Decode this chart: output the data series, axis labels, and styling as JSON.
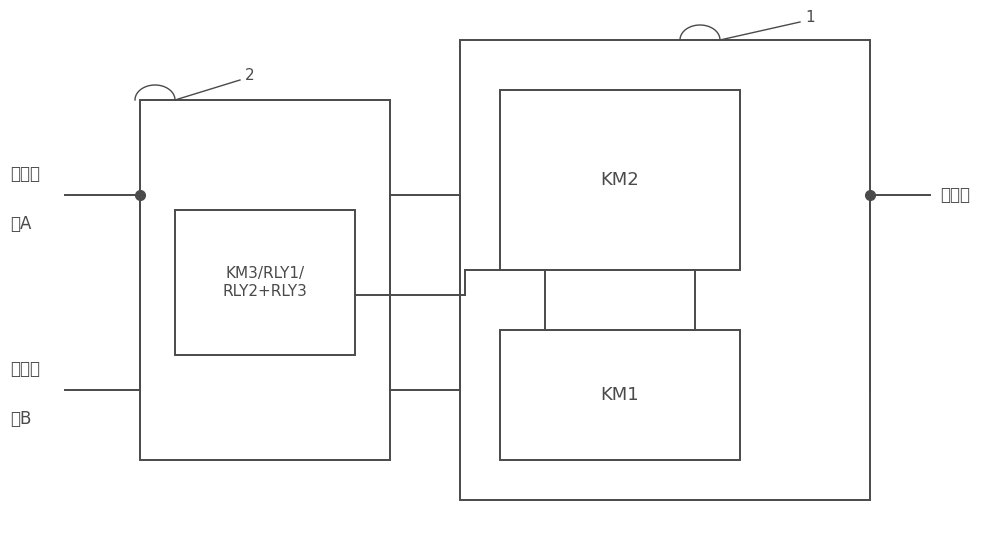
{
  "background_color": "#ffffff",
  "line_color": "#4a4a4a",
  "line_width": 1.4,
  "fig_width": 10.0,
  "fig_height": 5.59,
  "dpi": 100,
  "labels": {
    "source_a_line1": "交流电",
    "source_a_line2": "源A",
    "source_b_line1": "交流电",
    "source_b_line2": "源B",
    "load": "至负载",
    "km1": "KM1",
    "km2": "KM2",
    "km3_rly": "KM3/RLY1/\nRLY2+RLY3",
    "label1": "1",
    "label2": "2"
  },
  "font_size": 12,
  "label_font_size": 11
}
